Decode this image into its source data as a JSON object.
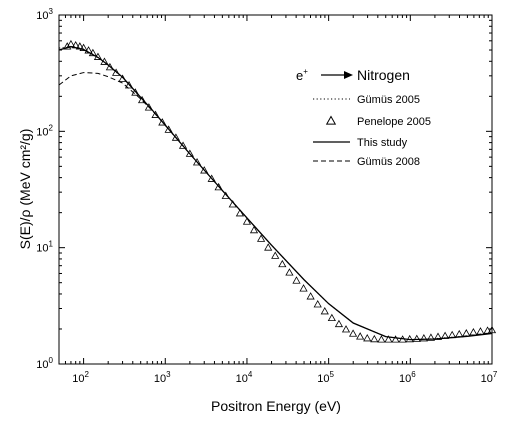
{
  "chart_data": {
    "type": "line",
    "title": "",
    "xlabel": "Positron Energy (eV)",
    "ylabel": "S(E)/ρ (MeV cm²/g)",
    "xscale": "log",
    "yscale": "log",
    "xlim": [
      50,
      10000000
    ],
    "ylim": [
      1,
      1000
    ],
    "x_ticks": [
      {
        "base": "10",
        "exp": "2",
        "value": 100
      },
      {
        "base": "10",
        "exp": "3",
        "value": 1000
      },
      {
        "base": "10",
        "exp": "4",
        "value": 10000
      },
      {
        "base": "10",
        "exp": "5",
        "value": 100000
      },
      {
        "base": "10",
        "exp": "6",
        "value": 1000000
      },
      {
        "base": "10",
        "exp": "7",
        "value": 10000000
      }
    ],
    "y_ticks": [
      {
        "base": "10",
        "exp": "0",
        "value": 1
      },
      {
        "base": "10",
        "exp": "1",
        "value": 10
      },
      {
        "base": "10",
        "exp": "2",
        "value": 100
      },
      {
        "base": "10",
        "exp": "3",
        "value": 1000
      }
    ],
    "annotation": {
      "particle": "e",
      "charge": "+",
      "target": "Nitrogen"
    },
    "grid": false,
    "legend_position": "top-right",
    "series": [
      {
        "name": "Gümüs 2005",
        "style": "dotted",
        "x": [
          50,
          70,
          100,
          150,
          200,
          300,
          500,
          700,
          1000,
          2000,
          5000,
          10000,
          20000,
          50000,
          100000,
          200000,
          500000,
          1000000,
          2000000,
          5000000,
          10000000
        ],
        "y": [
          520,
          530,
          500,
          430,
          370,
          290,
          195,
          150,
          112,
          64,
          31,
          18,
          10.5,
          5.3,
          3.3,
          2.25,
          1.72,
          1.62,
          1.65,
          1.75,
          1.85
        ]
      },
      {
        "name": "Penelope 2005",
        "style": "triangle-markers",
        "x": [
          63,
          70,
          80,
          90,
          100,
          115,
          130,
          150,
          180,
          210,
          250,
          300,
          360,
          430,
          520,
          630,
          760,
          920,
          1100,
          1350,
          1650,
          2000,
          2450,
          3000,
          3700,
          4500,
          5500,
          6700,
          8200,
          10000,
          12200,
          14900,
          18200,
          22200,
          27100,
          33100,
          40400,
          49300,
          60200,
          73500,
          89700,
          109500,
          133700,
          163200,
          199200,
          243200,
          296900,
          362500,
          442500,
          540200,
          659500,
          805100,
          982800,
          1199800,
          1464700,
          1788000,
          2182800,
          2664700,
          3253000,
          3971200,
          4848000,
          5918300,
          7225000,
          8820000,
          10000000
        ],
        "y": [
          535,
          560,
          548,
          535,
          520,
          495,
          470,
          435,
          395,
          355,
          318,
          282,
          248,
          215,
          185,
          160,
          138,
          119,
          103,
          88,
          75,
          64,
          54,
          46,
          39,
          33,
          27.8,
          23.5,
          19.7,
          16.7,
          14.1,
          11.9,
          10.0,
          8.5,
          7.2,
          6.1,
          5.2,
          4.45,
          3.8,
          3.25,
          2.83,
          2.48,
          2.2,
          1.98,
          1.82,
          1.72,
          1.66,
          1.63,
          1.62,
          1.62,
          1.62,
          1.62,
          1.63,
          1.64,
          1.66,
          1.68,
          1.71,
          1.74,
          1.77,
          1.8,
          1.83,
          1.87,
          1.9,
          1.93,
          1.95
        ]
      },
      {
        "name": "This study",
        "style": "solid",
        "x": [
          50,
          70,
          100,
          150,
          200,
          300,
          500,
          700,
          1000,
          2000,
          5000,
          10000,
          20000,
          50000,
          100000,
          200000,
          500000,
          1000000,
          2000000,
          5000000,
          10000000
        ],
        "y": [
          500,
          535,
          505,
          432,
          372,
          292,
          196,
          151,
          113,
          64,
          31,
          18,
          10.5,
          5.3,
          3.3,
          2.25,
          1.72,
          1.62,
          1.64,
          1.73,
          1.83
        ]
      },
      {
        "name": "Gümüs 2008",
        "style": "dashed",
        "x": [
          50,
          70,
          100,
          150,
          200,
          300,
          500,
          700,
          1000,
          2000,
          5000,
          10000
        ],
        "y": [
          250,
          300,
          320,
          315,
          295,
          260,
          190,
          150,
          113,
          64,
          31,
          18
        ]
      }
    ]
  }
}
